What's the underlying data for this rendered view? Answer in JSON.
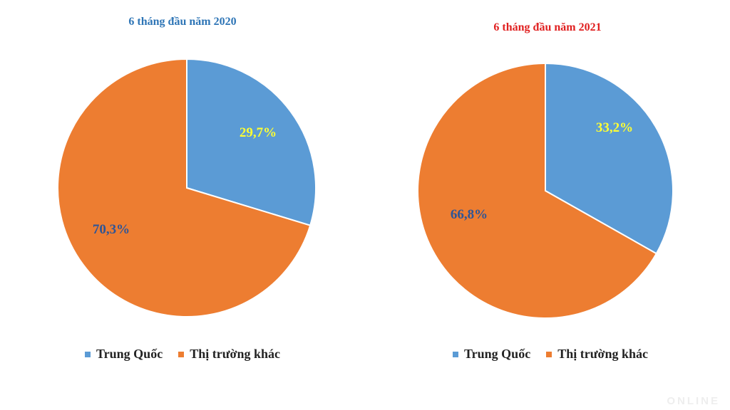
{
  "chart_data": [
    {
      "type": "pie",
      "title": "6 tháng đầu năm 2020",
      "title_color": "#2e75b6",
      "label_colors": [
        "#ffff33",
        "#2e5597"
      ],
      "slices": [
        {
          "name": "Trung Quốc",
          "value": 29.7,
          "label": "29,7%",
          "color": "#5b9bd5"
        },
        {
          "name": "Thị trường khác",
          "value": 70.3,
          "label": "70,3%",
          "color": "#ed7d31"
        }
      ]
    },
    {
      "type": "pie",
      "title": "6 tháng đầu năm 2021",
      "title_color": "#e02020",
      "label_colors": [
        "#ffff33",
        "#2e5597"
      ],
      "slices": [
        {
          "name": "Trung Quốc",
          "value": 33.2,
          "label": "33,2%",
          "color": "#5b9bd5"
        },
        {
          "name": "Thị trường khác",
          "value": 66.8,
          "label": "66,8%",
          "color": "#ed7d31"
        }
      ]
    }
  ]
}
